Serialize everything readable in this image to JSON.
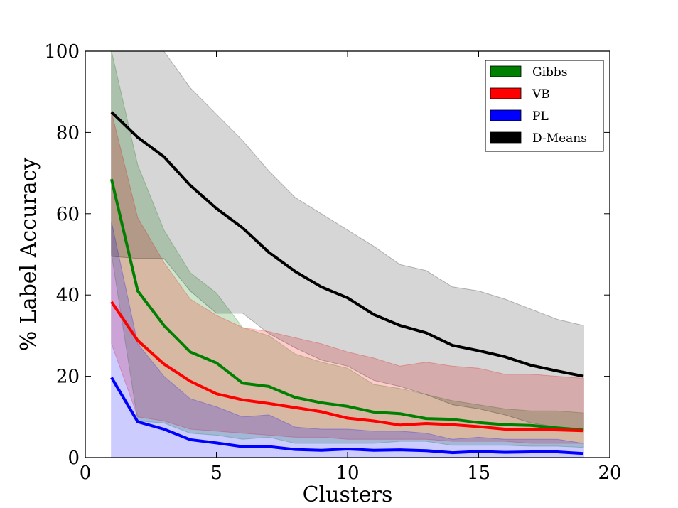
{
  "chart_data": {
    "type": "line",
    "title": "",
    "xlabel": "Clusters",
    "ylabel": "% Label Accuracy",
    "xlim": [
      0,
      20
    ],
    "ylim": [
      0,
      100
    ],
    "xticks": [
      0,
      5,
      10,
      15,
      20
    ],
    "yticks": [
      0,
      20,
      40,
      60,
      80,
      100
    ],
    "grid": false,
    "legend_position": "top-right",
    "x": [
      1,
      2,
      3,
      4,
      5,
      6,
      7,
      8,
      9,
      10,
      11,
      12,
      13,
      14,
      15,
      16,
      17,
      18,
      19
    ],
    "series": [
      {
        "name": "Gibbs",
        "color": "#008000",
        "band_alpha": 0.2,
        "values": [
          68.5,
          41,
          32.5,
          26,
          23.3,
          18.3,
          17.5,
          14.8,
          13.5,
          12.6,
          11.2,
          10.8,
          9.6,
          9.4,
          8.6,
          8.1,
          7.9,
          7.3,
          6.8
        ],
        "lower": [
          50,
          9,
          8.5,
          6,
          5.5,
          4.5,
          5,
          3.5,
          3.5,
          3.5,
          3.5,
          4,
          4,
          3,
          3,
          3,
          2.8,
          2.8,
          2.5
        ],
        "upper": [
          100,
          72,
          56,
          45.5,
          40.5,
          32,
          30,
          25.5,
          23.5,
          22,
          18,
          17,
          15.5,
          14,
          13,
          12,
          11.5,
          11.5,
          11
        ]
      },
      {
        "name": "VB",
        "color": "#ff0000",
        "band_alpha": 0.2,
        "values": [
          38.3,
          28.8,
          23,
          18.8,
          15.7,
          14.2,
          13.3,
          12.3,
          11.3,
          9.7,
          9,
          8,
          8.4,
          8.1,
          7.6,
          7,
          7,
          6.8,
          6.6
        ],
        "lower": [
          28,
          10,
          9,
          7,
          6.5,
          6,
          5.5,
          5,
          5,
          4.5,
          4.5,
          4.5,
          4.5,
          4,
          4,
          4,
          3.5,
          3.5,
          3.5
        ],
        "upper": [
          85,
          59,
          48,
          39,
          35,
          32,
          31,
          29.5,
          28,
          26,
          24.5,
          22.5,
          23.5,
          22.5,
          22,
          20.5,
          20.5,
          20,
          19.5
        ]
      },
      {
        "name": "PL",
        "color": "#0000ff",
        "band_alpha": 0.2,
        "values": [
          19.7,
          8.8,
          7,
          4.4,
          3.6,
          2.7,
          2.7,
          2,
          1.8,
          2.1,
          1.8,
          1.9,
          1.7,
          1.2,
          1.5,
          1.3,
          1.4,
          1.4,
          1
        ],
        "lower": [
          0,
          0,
          0,
          0,
          0,
          0,
          0,
          0,
          0,
          0,
          0,
          0,
          0,
          0,
          0,
          0,
          0,
          0,
          0
        ],
        "upper": [
          58,
          28,
          20,
          14.5,
          12.5,
          10,
          10.5,
          7.5,
          7,
          7,
          6.5,
          6.5,
          6,
          4.5,
          5,
          4.5,
          4.5,
          4.5,
          3.5
        ]
      },
      {
        "name": "D-Means",
        "color": "#000000",
        "band_alpha": 0.16,
        "values": [
          85,
          78.8,
          74,
          67,
          61.3,
          56.5,
          50.5,
          45.8,
          42,
          39.3,
          35.2,
          32.5,
          30.7,
          27.6,
          26.3,
          24.8,
          22.7,
          21.3,
          20
        ],
        "lower": [
          49.5,
          49,
          49,
          41,
          35.5,
          35.5,
          30.5,
          27,
          24,
          22.5,
          19,
          17.5,
          15.5,
          13,
          12,
          10.5,
          8.5,
          7.5,
          6.5
        ],
        "upper": [
          100,
          100,
          100,
          91,
          84.5,
          78,
          70.5,
          64,
          60,
          56,
          52,
          47.5,
          46,
          42,
          41,
          39,
          36.5,
          34,
          32.5
        ]
      }
    ]
  }
}
